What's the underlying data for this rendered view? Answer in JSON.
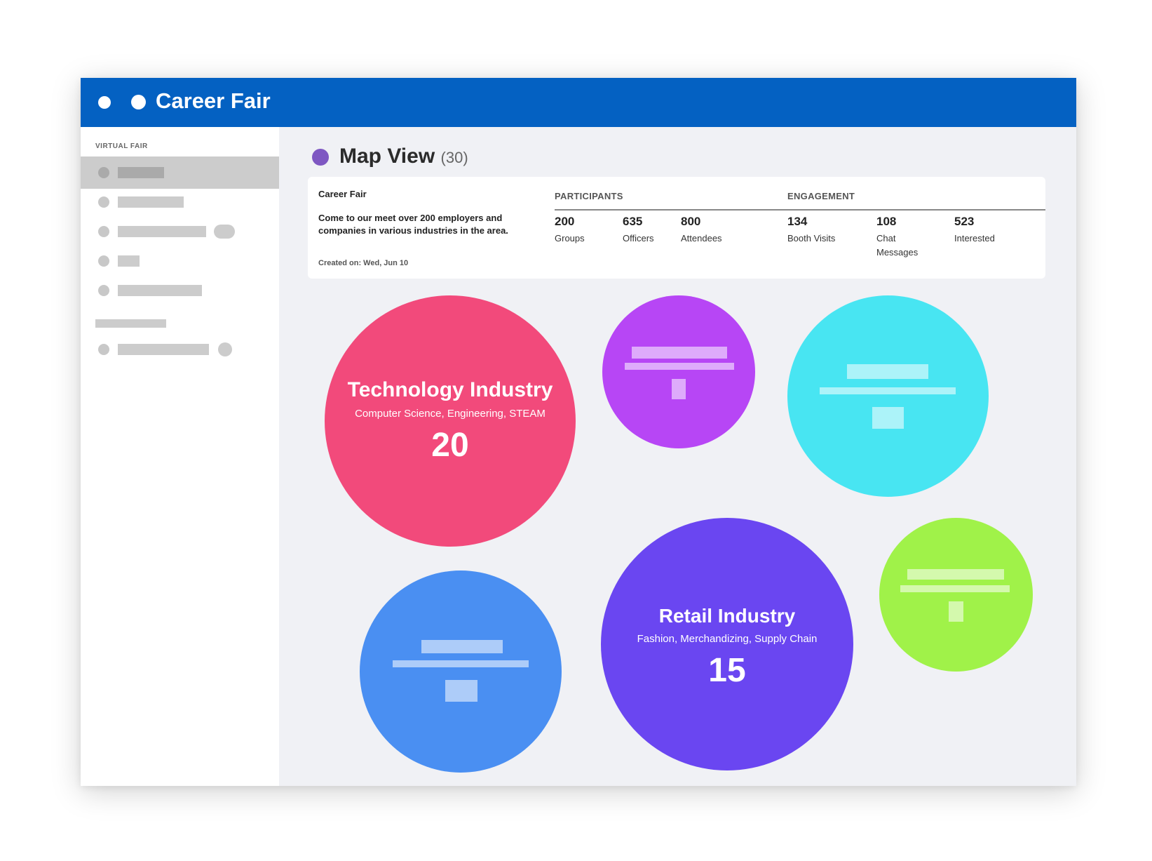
{
  "app": {
    "title": "Career Fair"
  },
  "sidebar": {
    "section_label": "VIRTUAL FAIR"
  },
  "main": {
    "title": "Map View",
    "count": "(30)"
  },
  "event": {
    "name": "Career Fair",
    "description": "Come to our meet over 200 employers and companies in various industries in the area.",
    "created": "Created on: Wed, Jun 10"
  },
  "participants": {
    "header": "PARTICIPANTS",
    "stats": [
      {
        "value": "200",
        "label": "Groups"
      },
      {
        "value": "635",
        "label": "Officers"
      },
      {
        "value": "800",
        "label": "Attendees"
      }
    ]
  },
  "engagement": {
    "header": "ENGAGEMENT",
    "stats": [
      {
        "value": "134",
        "label": "Booth Visits"
      },
      {
        "value": "108",
        "label": "Chat Messages"
      },
      {
        "value": "523",
        "label": "Interested"
      }
    ]
  },
  "bubbles": [
    {
      "title": "Technology Industry",
      "subtitle": "Computer Science, Engineering, STEAM",
      "count": "20",
      "color": "#f24a7b"
    },
    {
      "title": "Retail Industry",
      "subtitle": "Fashion, Merchandizing, Supply Chain",
      "count": "15",
      "color": "#6a46f1"
    }
  ],
  "colors": {
    "header": "#0461c2",
    "purple_bubble": "#b746f5",
    "cyan_bubble": "#48e5f2",
    "blue_bubble": "#4a8ff2",
    "green_bubble": "#a0f249",
    "map_dot": "#7e57c2"
  }
}
